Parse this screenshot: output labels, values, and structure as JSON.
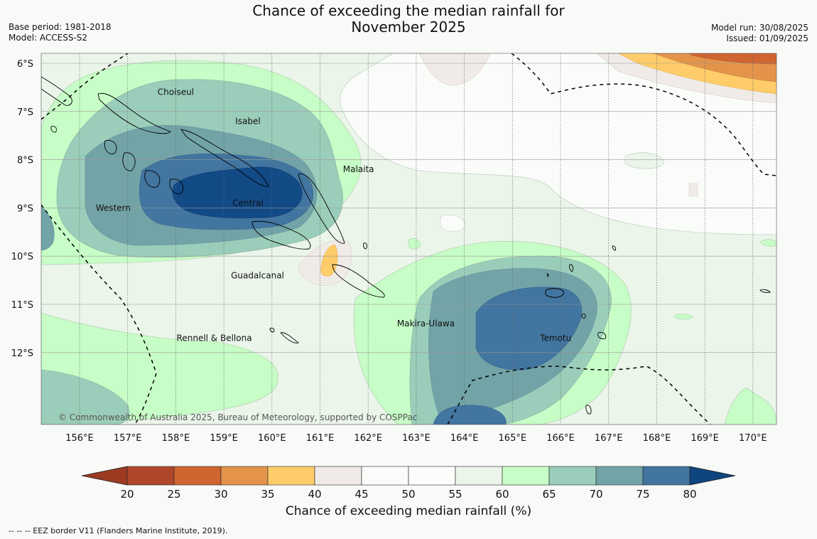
{
  "title": {
    "line1": "Chance of exceeding the median rainfall for",
    "line2": "November 2025"
  },
  "meta_left": {
    "base_period": "Base period: 1981-2018",
    "model": "Model: ACCESS-S2"
  },
  "meta_right": {
    "model_run": "Model run: 30/08/2025",
    "issued": "Issued: 01/09/2025"
  },
  "map": {
    "lat_labels": [
      "6°S",
      "7°S",
      "8°S",
      "9°S",
      "10°S",
      "11°S",
      "12°S"
    ],
    "lon_labels": [
      "156°E",
      "157°E",
      "158°E",
      "159°E",
      "160°E",
      "161°E",
      "162°E",
      "163°E",
      "164°E",
      "165°E",
      "166°E",
      "167°E",
      "168°E",
      "169°E",
      "170°E"
    ],
    "regions": [
      {
        "name": "Choiseul",
        "lon": 158.0,
        "lat": -6.6
      },
      {
        "name": "Isabel",
        "lon": 159.5,
        "lat": -7.2
      },
      {
        "name": "Malaita",
        "lon": 161.8,
        "lat": -8.2
      },
      {
        "name": "Western",
        "lon": 156.7,
        "lat": -9.0
      },
      {
        "name": "Central",
        "lon": 159.5,
        "lat": -8.9
      },
      {
        "name": "Guadalcanal",
        "lon": 159.7,
        "lat": -10.4
      },
      {
        "name": "Makira-Ulawa",
        "lon": 163.2,
        "lat": -11.4
      },
      {
        "name": "Temotu",
        "lon": 165.9,
        "lat": -11.7
      },
      {
        "name": "Rennell & Bellona",
        "lon": 158.8,
        "lat": -11.7
      }
    ],
    "credit": "© Commonwealth of Australia 2025, Bureau of Meteorology, supported by COSPPac"
  },
  "colorbar": {
    "ticks": [
      "20",
      "25",
      "30",
      "35",
      "40",
      "45",
      "50",
      "55",
      "60",
      "65",
      "70",
      "75",
      "80"
    ],
    "colors": [
      "#b0472a",
      "#cf6531",
      "#e3944a",
      "#fecc69",
      "#f0ebe7",
      "#fafcfa",
      "#fcfcfa",
      "#ebf5ea",
      "#c7fdc6",
      "#9bceba",
      "#72a4a7",
      "#4275a0",
      "#124a86"
    ],
    "low_color": "#9c3a22",
    "high_color": "#0e4580",
    "label": "Chance of exceeding median rainfall (%)"
  },
  "footnote": "--  --  -- EEZ border V11 (Flanders Marine Institute, 2019)."
}
